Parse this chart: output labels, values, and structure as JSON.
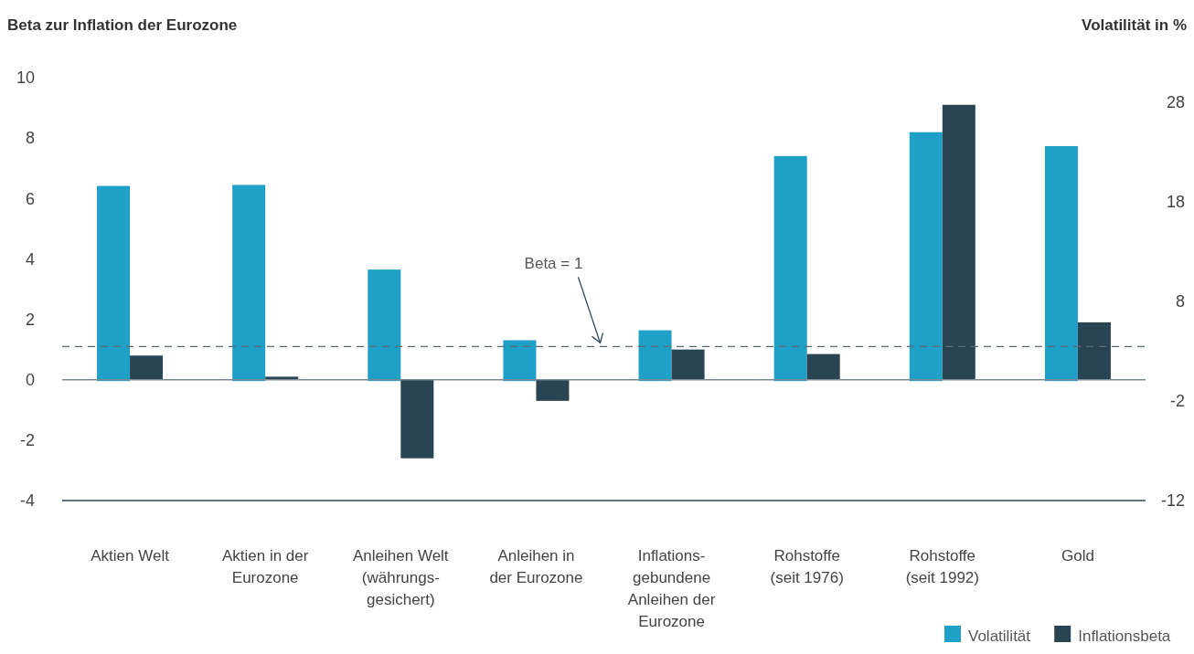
{
  "chart_data": {
    "type": "bar",
    "ylabel": "Beta zur Inflation der Eurozone",
    "y2label": "Volatilität in %",
    "categories": [
      "Aktien Welt",
      "Aktien in der\nEurozone",
      "Anleihen Welt\n(währungs-\ngesichert)",
      "Anleihen in\nder Eurozone",
      "Inflations-\ngebundene\nAnleihen der\nEurozone",
      "Rohstoffe\n(seit 1976)",
      "Rohstoffe\n(seit 1992)",
      "Gold"
    ],
    "series": [
      {
        "name": "Volatilität",
        "color": "#1fa0c6",
        "axis": "y2",
        "values": [
          19.6,
          19.7,
          11.2,
          4.1,
          5.1,
          22.6,
          25.0,
          23.6
        ]
      },
      {
        "name": "Inflationsbeta",
        "color": "#294554",
        "values": [
          0.8,
          0.1,
          -2.6,
          -0.7,
          1.0,
          0.85,
          9.1,
          1.9
        ]
      }
    ],
    "ylim": [
      -4,
      10
    ],
    "yticks": [
      -4,
      -2,
      0,
      2,
      4,
      6,
      8,
      10
    ],
    "y2lim": [
      -12,
      28
    ],
    "y2ticks": [
      -12,
      -2,
      8,
      18,
      28
    ],
    "ref_lines": [
      {
        "axis": "y",
        "value": 1.1,
        "label": "Beta = 1",
        "color": "#5a6b75",
        "line_style": "dashed"
      }
    ],
    "legend": "bottom right"
  }
}
